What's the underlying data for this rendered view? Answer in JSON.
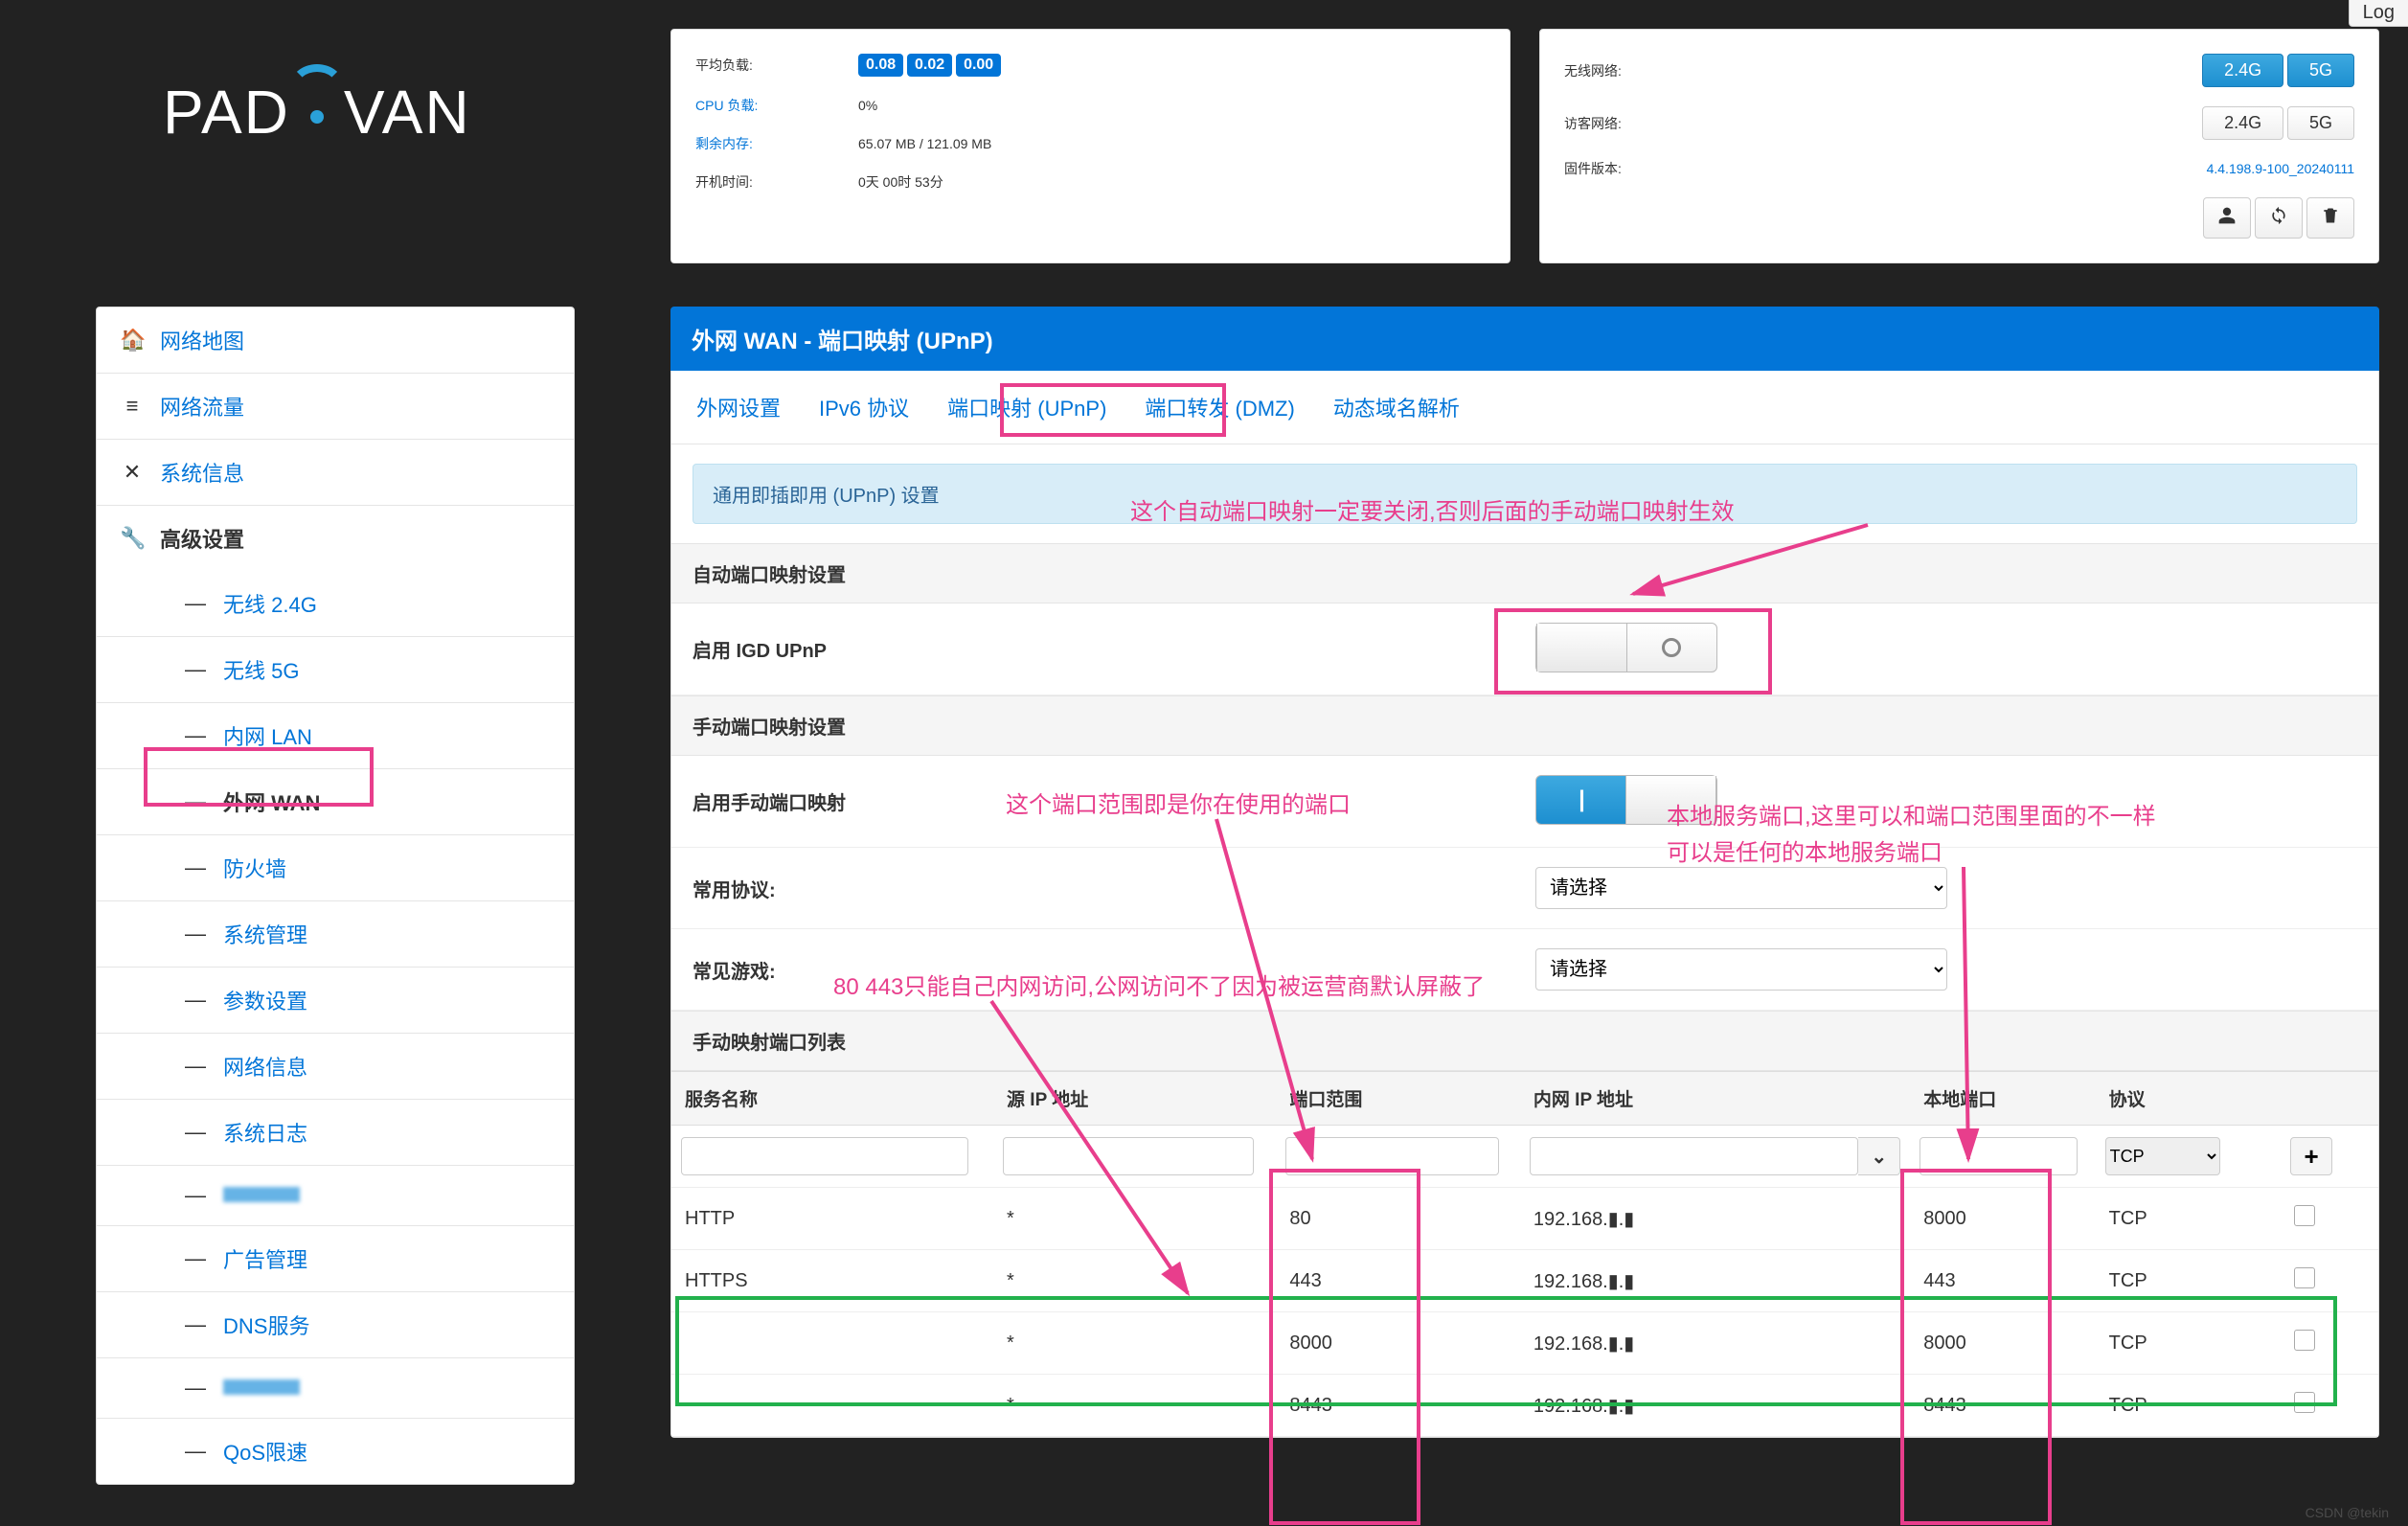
{
  "colors": {
    "accent": "#0275d8",
    "pink": "#e83e8c",
    "green": "#22b14c",
    "bg": "#222222",
    "panel": "#ffffff"
  },
  "top_log": "Log",
  "logo": {
    "pre": "PAD",
    "post": "VAN"
  },
  "stats_left": {
    "avg_load_k": "平均负载:",
    "avg_load_badges": [
      "0.08",
      "0.02",
      "0.00"
    ],
    "cpu_k": "CPU 负载:",
    "cpu_v": "0%",
    "mem_k": "剩余内存:",
    "mem_v": "65.07 MB / 121.09 MB",
    "uptime_k": "开机时间:",
    "uptime_v": "0天 00时 53分"
  },
  "stats_right": {
    "wifi_k": "无线网络:",
    "wifi_btns": [
      "2.4G",
      "5G"
    ],
    "guest_k": "访客网络:",
    "guest_btns": [
      "2.4G",
      "5G"
    ],
    "fw_k": "固件版本:",
    "fw_v": "4.4.198.9-100_20240111"
  },
  "sidebar": {
    "items": [
      {
        "icon": "🏠",
        "label": "网络地图"
      },
      {
        "icon": "≡",
        "label": "网络流量"
      },
      {
        "icon": "✕",
        "label": "系统信息"
      },
      {
        "icon": "🔧",
        "label": "高级设置",
        "section": true
      }
    ],
    "subs": [
      "无线 2.4G",
      "无线 5G",
      "内网 LAN",
      "外网 WAN",
      "防火墙",
      "系统管理",
      "参数设置",
      "网络信息",
      "系统日志",
      "",
      "广告管理",
      "DNS服务",
      "",
      "QoS限速"
    ],
    "sub_active_index": 3
  },
  "main": {
    "title": "外网 WAN - 端口映射 (UPnP)",
    "tabs": [
      "外网设置",
      "IPv6 协议",
      "端口映射 (UPnP)",
      "端口转发 (DMZ)",
      "动态域名解析"
    ],
    "tip": "通用即插即用 (UPnP) 设置",
    "auto_h": "自动端口映射设置",
    "igd_k": "启用 IGD UPnP",
    "man_h": "手动端口映射设置",
    "man_enable_k": "启用手动端口映射",
    "proto_k": "常用协议:",
    "game_k": "常见游戏:",
    "select_placeholder": "请选择",
    "list_h": "手动映射端口列表",
    "th": [
      "服务名称",
      "源 IP 地址",
      "端口范围",
      "内网 IP 地址",
      "本地端口",
      "协议",
      ""
    ],
    "proto_default": "TCP",
    "rows": [
      {
        "svc": "HTTP",
        "src": "*",
        "range": "80",
        "ip": "192.168.▮.▮",
        "local": "8000",
        "proto": "TCP"
      },
      {
        "svc": "HTTPS",
        "src": "*",
        "range": "443",
        "ip": "192.168.▮.▮",
        "local": "443",
        "proto": "TCP"
      },
      {
        "svc": "",
        "src": "*",
        "range": "8000",
        "ip": "192.168.▮.▮",
        "local": "8000",
        "proto": "TCP"
      },
      {
        "svc": "",
        "src": "*",
        "range": "8443",
        "ip": "192.168.▮.▮",
        "local": "8443",
        "proto": "TCP"
      }
    ]
  },
  "annotations": {
    "a1": "这个自动端口映射一定要关闭,否则后面的手动端口映射生效",
    "a2": "这个端口范围即是你在使用的端口",
    "a3_l1": "本地服务端口,这里可以和端口范围里面的不一样",
    "a3_l2": "可以是任何的本地服务端口",
    "a4": "80 443只能自己内网访问,公网访问不了因为被运营商默认屏蔽了"
  },
  "watermark": "CSDN @tekin"
}
